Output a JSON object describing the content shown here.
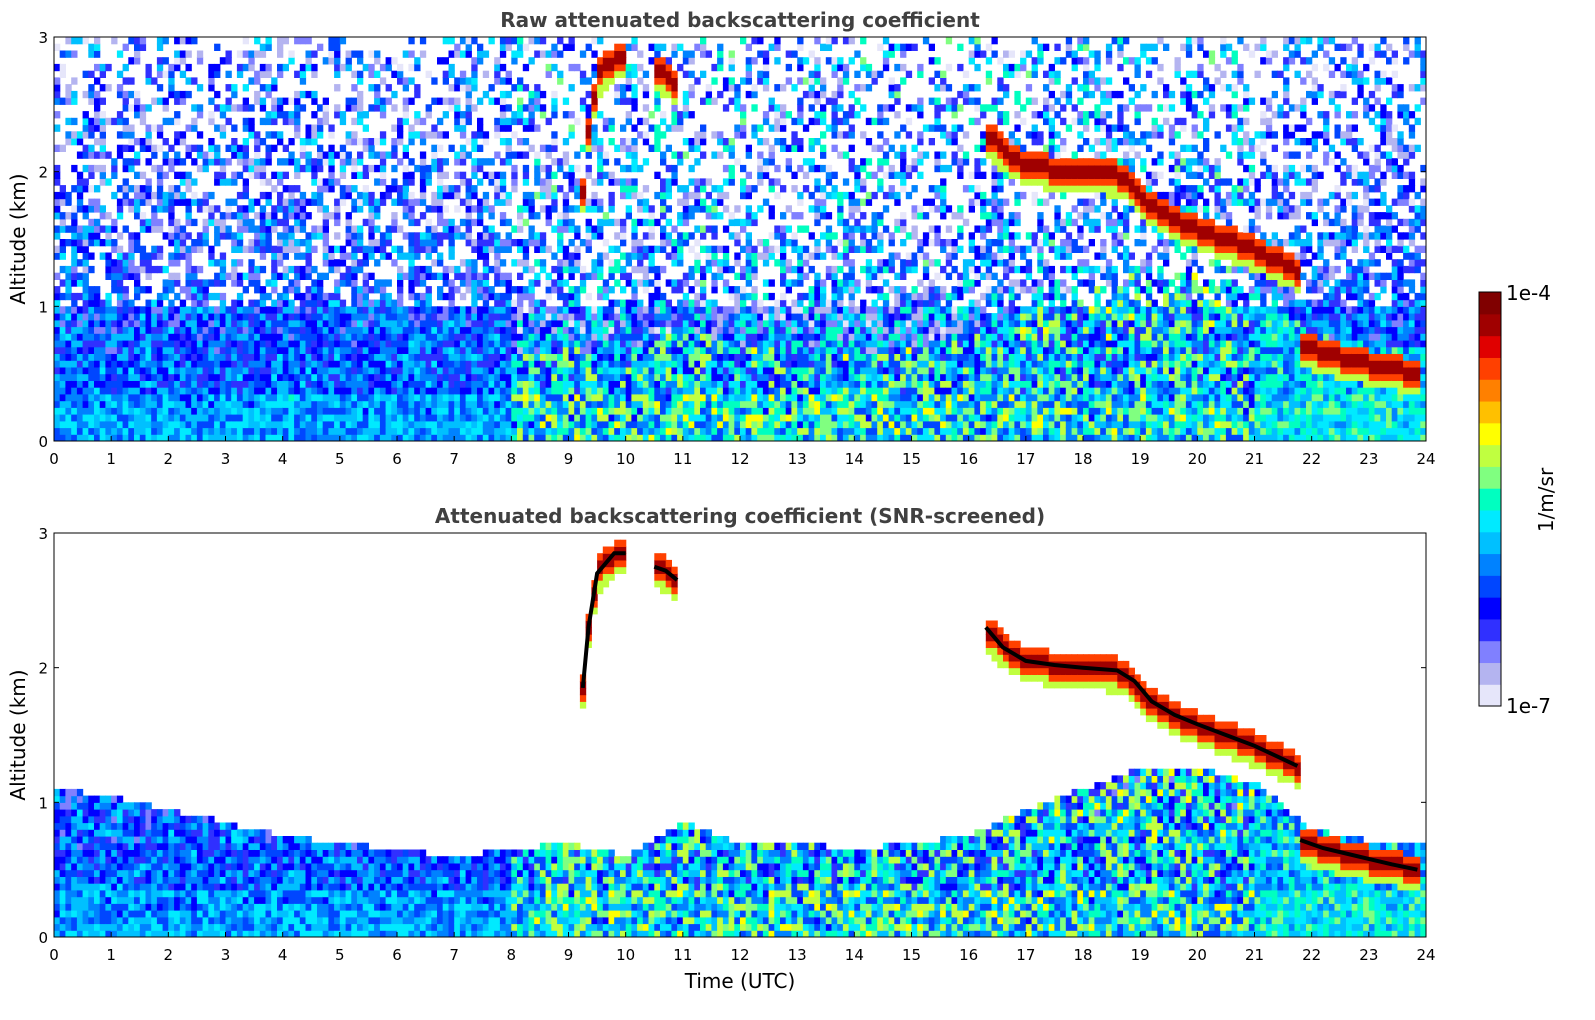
{
  "chart_data": [
    {
      "type": "heatmap",
      "title": "Raw attenuated backscattering coefficient",
      "xlabel": "",
      "ylabel": "Altitude (km)",
      "xlim": [
        0,
        24
      ],
      "ylim": [
        0,
        3
      ],
      "xticks": [
        0,
        1,
        2,
        3,
        4,
        5,
        6,
        7,
        8,
        9,
        10,
        11,
        12,
        13,
        14,
        15,
        16,
        17,
        18,
        19,
        20,
        21,
        22,
        23,
        24
      ],
      "yticks": [
        0,
        1,
        2,
        3
      ],
      "screened": false,
      "layers": [
        {
          "kind": "cloud",
          "points": [
            [
              9.25,
              1.85
            ],
            [
              9.35,
              2.3
            ],
            [
              9.5,
              2.7
            ],
            [
              9.8,
              2.85
            ],
            [
              10.0,
              2.85
            ]
          ]
        },
        {
          "kind": "cloud",
          "points": [
            [
              10.5,
              2.75
            ],
            [
              10.7,
              2.72
            ],
            [
              10.9,
              2.65
            ]
          ]
        },
        {
          "kind": "cloud",
          "points": [
            [
              16.3,
              2.3
            ],
            [
              16.6,
              2.15
            ],
            [
              17.0,
              2.05
            ],
            [
              17.5,
              2.02
            ],
            [
              18.0,
              2.0
            ],
            [
              18.6,
              1.98
            ],
            [
              18.9,
              1.9
            ],
            [
              19.2,
              1.75
            ],
            [
              19.6,
              1.65
            ],
            [
              20.0,
              1.58
            ],
            [
              20.5,
              1.5
            ],
            [
              21.0,
              1.42
            ],
            [
              21.5,
              1.32
            ],
            [
              21.75,
              1.27
            ]
          ]
        },
        {
          "kind": "cloud",
          "points": [
            [
              21.8,
              0.72
            ],
            [
              22.2,
              0.66
            ],
            [
              22.6,
              0.62
            ],
            [
              23.0,
              0.58
            ],
            [
              23.4,
              0.54
            ],
            [
              23.85,
              0.5
            ]
          ]
        }
      ]
    },
    {
      "type": "heatmap",
      "title": "Attenuated backscattering coefficient (SNR-screened)",
      "xlabel": "Time (UTC)",
      "ylabel": "Altitude (km)",
      "xlim": [
        0,
        24
      ],
      "ylim": [
        0,
        3
      ],
      "xticks": [
        0,
        1,
        2,
        3,
        4,
        5,
        6,
        7,
        8,
        9,
        10,
        11,
        12,
        13,
        14,
        15,
        16,
        17,
        18,
        19,
        20,
        21,
        22,
        23,
        24
      ],
      "yticks": [
        0,
        1,
        2,
        3
      ],
      "screened": true,
      "boundary_layer_top_km": [
        [
          0,
          1.1
        ],
        [
          1,
          1.05
        ],
        [
          2,
          0.95
        ],
        [
          3,
          0.85
        ],
        [
          4,
          0.75
        ],
        [
          5,
          0.7
        ],
        [
          6,
          0.65
        ],
        [
          7,
          0.6
        ],
        [
          8,
          0.65
        ],
        [
          9,
          0.7
        ],
        [
          10,
          0.6
        ],
        [
          11,
          0.85
        ],
        [
          12,
          0.7
        ],
        [
          13,
          0.7
        ],
        [
          14,
          0.65
        ],
        [
          15,
          0.7
        ],
        [
          16,
          0.75
        ],
        [
          17,
          0.95
        ],
        [
          18,
          1.1
        ],
        [
          19,
          1.25
        ],
        [
          20,
          1.25
        ],
        [
          21,
          1.15
        ],
        [
          22,
          0.8
        ],
        [
          23,
          0.72
        ],
        [
          24,
          0.72
        ]
      ]
    }
  ],
  "colorbar": {
    "label": "1/m/sr",
    "max_label": "1e-4",
    "min_label": "1e-7",
    "colors": [
      "#e6e6fa",
      "#b4b4f0",
      "#8080ff",
      "#3030ff",
      "#0000ff",
      "#0046ff",
      "#0082ff",
      "#00c0ff",
      "#00eaff",
      "#00ffc0",
      "#80ff80",
      "#c0ff40",
      "#ffff00",
      "#ffc000",
      "#ff8000",
      "#ff4000",
      "#e00000",
      "#a00000",
      "#800000"
    ]
  }
}
